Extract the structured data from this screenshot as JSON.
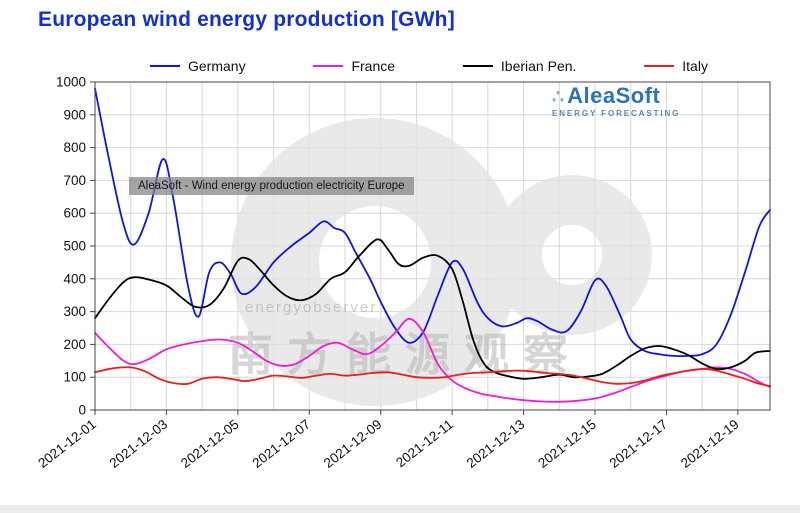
{
  "title": "European wind energy production [GWh]",
  "colors": {
    "title": "#1330cf",
    "grid": "#d8d8d8",
    "frame": "#444444",
    "watermark_gray": "#e2e2e2"
  },
  "logo": {
    "dots": "∴",
    "name": "AleaSoft",
    "tagline": "ENERGY FORECASTING"
  },
  "annotation": {
    "text": "AleaSoft - Wind energy production electricity Europe"
  },
  "watermark": {
    "latin": "energyobserver",
    "cjk": "南方能源观察"
  },
  "chart_data": {
    "type": "line",
    "title": "European wind energy production [GWh]",
    "xlabel": "",
    "ylabel": "",
    "ylim": [
      0,
      1000
    ],
    "y_ticks": [
      0,
      100,
      200,
      300,
      400,
      500,
      600,
      700,
      800,
      900,
      1000
    ],
    "x_range": [
      0,
      18.9
    ],
    "grid": true,
    "grid_x_step": 1,
    "legend_position": "top",
    "x_ticks": [
      {
        "pos": 0,
        "label": "2021-12-01"
      },
      {
        "pos": 2,
        "label": "2021-12-03"
      },
      {
        "pos": 4,
        "label": "2021-12-05"
      },
      {
        "pos": 6,
        "label": "2021-12-07"
      },
      {
        "pos": 8,
        "label": "2021-12-09"
      },
      {
        "pos": 10,
        "label": "2021-12-11"
      },
      {
        "pos": 12,
        "label": "2021-12-13"
      },
      {
        "pos": 14,
        "label": "2021-12-15"
      },
      {
        "pos": 16,
        "label": "2021-12-17"
      },
      {
        "pos": 18,
        "label": "2021-12-19"
      }
    ],
    "series": [
      {
        "name": "Germany",
        "color": "#1212e6",
        "points": [
          [
            0,
            980
          ],
          [
            0.4,
            760
          ],
          [
            0.8,
            565
          ],
          [
            1.1,
            505
          ],
          [
            1.5,
            600
          ],
          [
            1.9,
            765
          ],
          [
            2.2,
            640
          ],
          [
            2.6,
            380
          ],
          [
            2.9,
            285
          ],
          [
            3.2,
            420
          ],
          [
            3.5,
            450
          ],
          [
            3.8,
            415
          ],
          [
            4.1,
            355
          ],
          [
            4.5,
            375
          ],
          [
            5,
            450
          ],
          [
            5.5,
            500
          ],
          [
            6,
            540
          ],
          [
            6.4,
            575
          ],
          [
            6.7,
            555
          ],
          [
            7,
            540
          ],
          [
            7.3,
            480
          ],
          [
            7.7,
            400
          ],
          [
            8,
            330
          ],
          [
            8.4,
            250
          ],
          [
            8.8,
            205
          ],
          [
            9.2,
            240
          ],
          [
            9.6,
            350
          ],
          [
            10,
            450
          ],
          [
            10.3,
            430
          ],
          [
            10.7,
            330
          ],
          [
            11,
            280
          ],
          [
            11.4,
            255
          ],
          [
            11.8,
            265
          ],
          [
            12.1,
            280
          ],
          [
            12.4,
            270
          ],
          [
            12.8,
            245
          ],
          [
            13.2,
            240
          ],
          [
            13.6,
            300
          ],
          [
            14,
            395
          ],
          [
            14.3,
            380
          ],
          [
            14.7,
            290
          ],
          [
            15,
            215
          ],
          [
            15.4,
            180
          ],
          [
            15.8,
            170
          ],
          [
            16.2,
            165
          ],
          [
            16.6,
            165
          ],
          [
            17,
            170
          ],
          [
            17.4,
            200
          ],
          [
            17.8,
            290
          ],
          [
            18.2,
            420
          ],
          [
            18.6,
            560
          ],
          [
            18.9,
            610
          ]
        ]
      },
      {
        "name": "France",
        "color": "#ee1ed2",
        "points": [
          [
            0,
            235
          ],
          [
            0.4,
            190
          ],
          [
            0.8,
            150
          ],
          [
            1.1,
            140
          ],
          [
            1.5,
            155
          ],
          [
            2,
            185
          ],
          [
            2.5,
            200
          ],
          [
            3,
            210
          ],
          [
            3.5,
            215
          ],
          [
            4,
            205
          ],
          [
            4.4,
            180
          ],
          [
            4.8,
            150
          ],
          [
            5.2,
            135
          ],
          [
            5.6,
            140
          ],
          [
            6,
            165
          ],
          [
            6.4,
            195
          ],
          [
            6.8,
            205
          ],
          [
            7.2,
            185
          ],
          [
            7.6,
            170
          ],
          [
            8,
            195
          ],
          [
            8.4,
            235
          ],
          [
            8.8,
            278
          ],
          [
            9.2,
            235
          ],
          [
            9.6,
            140
          ],
          [
            10,
            90
          ],
          [
            10.4,
            65
          ],
          [
            10.8,
            50
          ],
          [
            11.2,
            42
          ],
          [
            11.6,
            35
          ],
          [
            12,
            30
          ],
          [
            12.5,
            26
          ],
          [
            13,
            25
          ],
          [
            13.5,
            28
          ],
          [
            14,
            35
          ],
          [
            14.5,
            50
          ],
          [
            15,
            70
          ],
          [
            15.5,
            90
          ],
          [
            16,
            105
          ],
          [
            16.5,
            118
          ],
          [
            17,
            125
          ],
          [
            17.4,
            130
          ],
          [
            17.8,
            125
          ],
          [
            18.2,
            110
          ],
          [
            18.6,
            85
          ],
          [
            18.9,
            70
          ]
        ]
      },
      {
        "name": "Iberian Pen.",
        "color": "#000000",
        "points": [
          [
            0,
            280
          ],
          [
            0.4,
            340
          ],
          [
            0.8,
            390
          ],
          [
            1.1,
            405
          ],
          [
            1.5,
            398
          ],
          [
            2,
            380
          ],
          [
            2.4,
            345
          ],
          [
            2.8,
            315
          ],
          [
            3.2,
            320
          ],
          [
            3.6,
            370
          ],
          [
            4,
            455
          ],
          [
            4.3,
            460
          ],
          [
            4.6,
            430
          ],
          [
            5,
            380
          ],
          [
            5.4,
            345
          ],
          [
            5.8,
            335
          ],
          [
            6.2,
            355
          ],
          [
            6.6,
            400
          ],
          [
            7,
            420
          ],
          [
            7.4,
            470
          ],
          [
            7.9,
            520
          ],
          [
            8.2,
            490
          ],
          [
            8.5,
            445
          ],
          [
            8.8,
            440
          ],
          [
            9.2,
            465
          ],
          [
            9.6,
            470
          ],
          [
            10,
            430
          ],
          [
            10.3,
            330
          ],
          [
            10.6,
            210
          ],
          [
            10.9,
            140
          ],
          [
            11.2,
            115
          ],
          [
            11.5,
            105
          ],
          [
            12,
            95
          ],
          [
            12.5,
            100
          ],
          [
            13,
            108
          ],
          [
            13.4,
            100
          ],
          [
            13.8,
            102
          ],
          [
            14.2,
            110
          ],
          [
            14.6,
            135
          ],
          [
            15,
            165
          ],
          [
            15.4,
            188
          ],
          [
            15.8,
            195
          ],
          [
            16.2,
            185
          ],
          [
            16.6,
            168
          ],
          [
            17,
            142
          ],
          [
            17.4,
            125
          ],
          [
            17.8,
            130
          ],
          [
            18.2,
            150
          ],
          [
            18.5,
            175
          ],
          [
            18.9,
            180
          ]
        ]
      },
      {
        "name": "Italy",
        "color": "#e32222",
        "points": [
          [
            0,
            115
          ],
          [
            0.5,
            127
          ],
          [
            1,
            130
          ],
          [
            1.4,
            118
          ],
          [
            1.8,
            95
          ],
          [
            2.2,
            82
          ],
          [
            2.6,
            80
          ],
          [
            3,
            95
          ],
          [
            3.4,
            100
          ],
          [
            3.8,
            95
          ],
          [
            4.2,
            88
          ],
          [
            4.6,
            95
          ],
          [
            5,
            105
          ],
          [
            5.4,
            102
          ],
          [
            5.8,
            98
          ],
          [
            6.2,
            105
          ],
          [
            6.6,
            110
          ],
          [
            7,
            105
          ],
          [
            7.4,
            108
          ],
          [
            7.8,
            113
          ],
          [
            8.2,
            115
          ],
          [
            8.6,
            108
          ],
          [
            9,
            100
          ],
          [
            9.4,
            98
          ],
          [
            9.8,
            100
          ],
          [
            10.2,
            108
          ],
          [
            10.6,
            113
          ],
          [
            11,
            115
          ],
          [
            11.4,
            118
          ],
          [
            11.8,
            120
          ],
          [
            12.2,
            118
          ],
          [
            12.6,
            113
          ],
          [
            13,
            110
          ],
          [
            13.4,
            105
          ],
          [
            13.8,
            95
          ],
          [
            14.2,
            85
          ],
          [
            14.6,
            80
          ],
          [
            15,
            82
          ],
          [
            15.4,
            90
          ],
          [
            15.8,
            103
          ],
          [
            16.2,
            112
          ],
          [
            16.6,
            120
          ],
          [
            17,
            125
          ],
          [
            17.4,
            120
          ],
          [
            17.8,
            108
          ],
          [
            18.2,
            95
          ],
          [
            18.6,
            80
          ],
          [
            18.9,
            73
          ]
        ]
      }
    ]
  }
}
